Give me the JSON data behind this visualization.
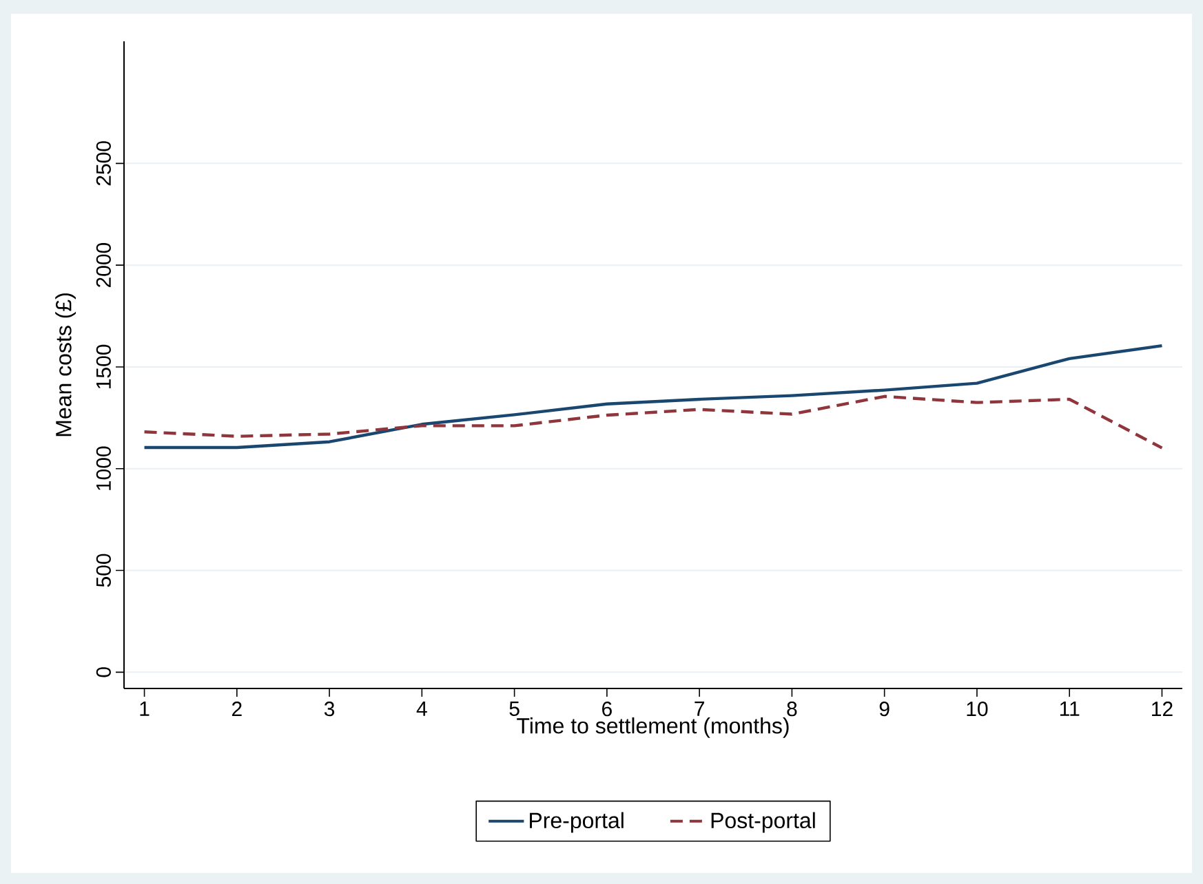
{
  "chart_data": {
    "type": "line",
    "xlabel": "Time to settlement (months)",
    "ylabel": "Mean costs (£)",
    "x": [
      1,
      2,
      3,
      4,
      5,
      6,
      7,
      8,
      9,
      10,
      11,
      12
    ],
    "series": [
      {
        "name": "Pre-portal",
        "color": "#1a476f",
        "line_style": "solid",
        "values": [
          1104,
          1104,
          1132,
          1218,
          1265,
          1318,
          1341,
          1359,
          1386,
          1420,
          1541,
          1604
        ]
      },
      {
        "name": "Post-portal",
        "color": "#90353b",
        "line_style": "dashed",
        "values": [
          1181,
          1159,
          1170,
          1211,
          1211,
          1263,
          1291,
          1268,
          1355,
          1325,
          1341,
          1102
        ]
      }
    ],
    "xlim": [
      0.78,
      12.22
    ],
    "ylim": [
      -80,
      3100
    ],
    "xticks": [
      1,
      2,
      3,
      4,
      5,
      6,
      7,
      8,
      9,
      10,
      11,
      12
    ],
    "yticks": [
      0,
      500,
      1000,
      1500,
      2000,
      2500
    ],
    "grid": "y",
    "legend": "bottom",
    "marker": "none"
  }
}
